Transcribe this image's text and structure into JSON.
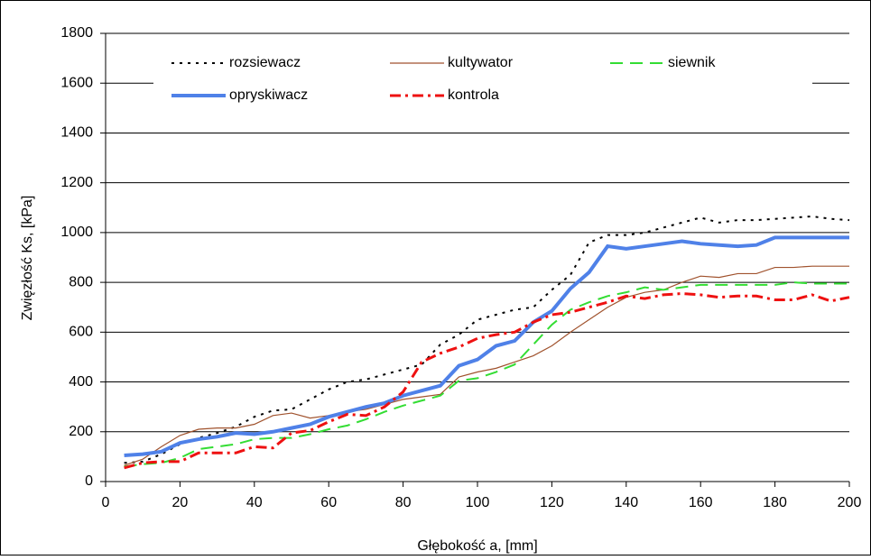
{
  "chart_data": {
    "type": "line",
    "x_label": "Głębokość a, [mm]",
    "y_label": "Zwięzłość  Ks, [kPa]",
    "x": [
      5,
      10,
      15,
      20,
      25,
      30,
      35,
      40,
      45,
      50,
      55,
      60,
      65,
      70,
      75,
      80,
      85,
      90,
      95,
      100,
      105,
      110,
      115,
      120,
      125,
      130,
      135,
      140,
      145,
      150,
      155,
      160,
      165,
      170,
      175,
      180,
      185,
      190,
      195,
      200
    ],
    "series": [
      {
        "name": "rozsiewacz",
        "color": "#000000",
        "line_style": "dotted",
        "values": [
          75,
          80,
          110,
          150,
          175,
          195,
          220,
          260,
          285,
          290,
          330,
          370,
          400,
          410,
          430,
          450,
          470,
          550,
          590,
          650,
          670,
          690,
          700,
          770,
          830,
          960,
          990,
          990,
          1000,
          1020,
          1040,
          1060,
          1040,
          1050,
          1050,
          1055,
          1060,
          1065,
          1055,
          1050
        ]
      },
      {
        "name": "kultywator",
        "color": "#a0522d",
        "line_style": "thin",
        "values": [
          65,
          90,
          140,
          185,
          210,
          215,
          215,
          230,
          265,
          275,
          255,
          265,
          280,
          290,
          310,
          330,
          340,
          350,
          420,
          440,
          455,
          480,
          505,
          545,
          600,
          650,
          700,
          740,
          760,
          770,
          800,
          825,
          820,
          835,
          835,
          860,
          860,
          865,
          865,
          865
        ]
      },
      {
        "name": "siewnik",
        "color": "#33dd33",
        "line_style": "dashed",
        "values": [
          60,
          70,
          75,
          95,
          130,
          140,
          150,
          170,
          175,
          175,
          190,
          210,
          225,
          250,
          280,
          305,
          325,
          345,
          405,
          415,
          440,
          470,
          550,
          630,
          690,
          720,
          745,
          760,
          780,
          770,
          780,
          790,
          790,
          790,
          790,
          790,
          800,
          795,
          795,
          795
        ]
      },
      {
        "name": "opryskiwacz",
        "color": "#4f81e8",
        "line_style": "thick",
        "values": [
          105,
          110,
          120,
          155,
          170,
          180,
          195,
          190,
          200,
          215,
          230,
          260,
          280,
          300,
          315,
          345,
          365,
          385,
          465,
          490,
          545,
          565,
          640,
          685,
          775,
          840,
          945,
          935,
          945,
          955,
          965,
          955,
          950,
          945,
          950,
          980,
          980,
          980,
          980,
          980
        ]
      },
      {
        "name": "kontrola",
        "color": "#ee1111",
        "line_style": "dash-dot",
        "values": [
          55,
          75,
          80,
          80,
          115,
          115,
          115,
          140,
          135,
          195,
          205,
          240,
          270,
          265,
          300,
          360,
          480,
          515,
          540,
          575,
          590,
          600,
          640,
          670,
          680,
          700,
          720,
          745,
          735,
          750,
          755,
          750,
          740,
          745,
          745,
          730,
          730,
          750,
          725,
          740
        ]
      }
    ],
    "xlim": [
      0,
      200
    ],
    "xticks": [
      0,
      20,
      40,
      60,
      80,
      100,
      120,
      140,
      160,
      180,
      200
    ],
    "ylim": [
      0,
      1800
    ],
    "yticks": [
      0,
      200,
      400,
      600,
      800,
      1000,
      1200,
      1400,
      1600,
      1800
    ],
    "grid": true,
    "legend": "top"
  }
}
